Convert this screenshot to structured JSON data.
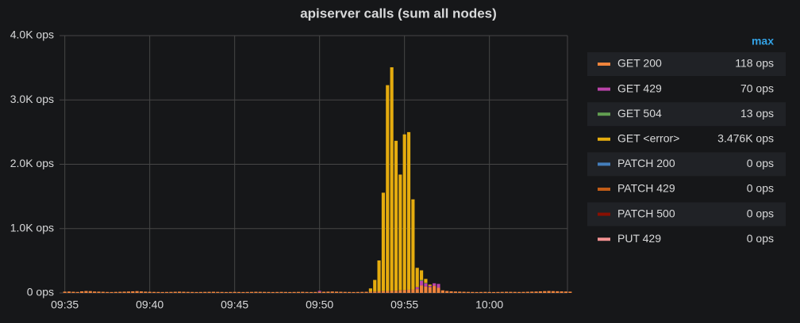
{
  "chart_data": {
    "type": "stacked_bar",
    "title": "apiserver calls (sum all nodes)",
    "categories": [
      "09:35",
      null,
      null,
      null,
      null,
      null,
      null,
      null,
      null,
      null,
      null,
      null,
      null,
      null,
      null,
      null,
      null,
      null,
      null,
      null,
      "09:40",
      null,
      null,
      null,
      null,
      null,
      null,
      null,
      null,
      null,
      null,
      null,
      null,
      null,
      null,
      null,
      null,
      null,
      null,
      null,
      "09:45",
      null,
      null,
      null,
      null,
      null,
      null,
      null,
      null,
      null,
      null,
      null,
      null,
      null,
      null,
      null,
      null,
      null,
      null,
      null,
      "09:50",
      null,
      null,
      null,
      null,
      null,
      null,
      null,
      null,
      null,
      null,
      null,
      null,
      null,
      null,
      null,
      null,
      null,
      null,
      null,
      "09:55",
      null,
      null,
      null,
      null,
      null,
      null,
      null,
      null,
      null,
      null,
      null,
      null,
      null,
      null,
      null,
      null,
      null,
      null,
      null,
      "10:00",
      null,
      null,
      null,
      null,
      null,
      null,
      null,
      null,
      null,
      null,
      null,
      null,
      null,
      null,
      null,
      null,
      null,
      null,
      null
    ],
    "ylim": [
      0,
      4000
    ],
    "yticks": [
      {
        "value": 0,
        "label": "0 ops"
      },
      {
        "value": 1000,
        "label": "1.0K ops"
      },
      {
        "value": 2000,
        "label": "2.0K ops"
      },
      {
        "value": 3000,
        "label": "3.0K ops"
      },
      {
        "value": 4000,
        "label": "4.0K ops"
      }
    ],
    "grid": true,
    "legend_header": "max",
    "series": [
      {
        "name": "GET 200",
        "color": "#ef843c",
        "max": {
          "value": 118,
          "label": "118 ops"
        },
        "values": [
          20,
          22,
          18,
          15,
          25,
          30,
          28,
          22,
          20,
          18,
          15,
          14,
          16,
          18,
          20,
          22,
          25,
          28,
          24,
          20,
          18,
          16,
          15,
          14,
          15,
          16,
          18,
          20,
          18,
          16,
          15,
          14,
          15,
          16,
          17,
          18,
          16,
          15,
          14,
          15,
          16,
          15,
          14,
          15,
          16,
          18,
          17,
          16,
          15,
          14,
          15,
          16,
          15,
          14,
          15,
          16,
          17,
          15,
          14,
          15,
          16,
          18,
          20,
          22,
          20,
          18,
          16,
          15,
          14,
          15,
          16,
          18,
          20,
          22,
          25,
          28,
          30,
          32,
          35,
          40,
          45,
          50,
          55,
          60,
          118,
          100,
          90,
          110,
          80,
          40,
          30,
          25,
          22,
          20,
          18,
          16,
          15,
          14,
          15,
          16,
          15,
          14,
          15,
          16,
          18,
          17,
          16,
          15,
          16,
          18,
          20,
          22,
          25,
          28,
          30,
          28,
          26,
          24,
          22,
          20
        ]
      },
      {
        "name": "GET 429",
        "color": "#ba43a9",
        "max": {
          "value": 70,
          "label": "70 ops"
        },
        "values": [
          0,
          0,
          0,
          0,
          0,
          0,
          0,
          0,
          0,
          0,
          0,
          0,
          0,
          0,
          0,
          0,
          0,
          0,
          0,
          0,
          0,
          0,
          0,
          0,
          0,
          0,
          0,
          0,
          0,
          0,
          0,
          0,
          0,
          0,
          0,
          0,
          0,
          0,
          0,
          0,
          0,
          0,
          0,
          0,
          0,
          0,
          0,
          0,
          0,
          0,
          0,
          0,
          0,
          0,
          0,
          0,
          0,
          0,
          0,
          0,
          15,
          0,
          0,
          0,
          0,
          0,
          0,
          0,
          0,
          0,
          0,
          0,
          0,
          0,
          0,
          0,
          0,
          0,
          0,
          0,
          0,
          0,
          0,
          30,
          70,
          50,
          20,
          40,
          60,
          0,
          0,
          0,
          0,
          0,
          0,
          0,
          0,
          0,
          0,
          0,
          0,
          0,
          0,
          0,
          0,
          0,
          0,
          0,
          0,
          0,
          0,
          0,
          0,
          0,
          0,
          0,
          0,
          0,
          0,
          0
        ]
      },
      {
        "name": "GET 504",
        "color": "#629e51",
        "max": {
          "value": 13,
          "label": "13 ops"
        },
        "values": [
          0,
          0,
          0,
          0,
          0,
          0,
          0,
          0,
          0,
          0,
          0,
          0,
          0,
          0,
          0,
          0,
          0,
          0,
          0,
          0,
          0,
          0,
          0,
          0,
          0,
          0,
          0,
          0,
          0,
          0,
          0,
          0,
          0,
          0,
          0,
          0,
          0,
          0,
          0,
          0,
          0,
          0,
          0,
          0,
          0,
          0,
          0,
          0,
          0,
          0,
          0,
          0,
          0,
          0,
          0,
          0,
          0,
          0,
          0,
          0,
          0,
          0,
          0,
          0,
          0,
          0,
          0,
          0,
          0,
          0,
          0,
          0,
          0,
          0,
          0,
          0,
          0,
          0,
          0,
          0,
          0,
          0,
          0,
          0,
          13,
          8,
          0,
          0,
          0,
          0,
          0,
          0,
          0,
          0,
          0,
          0,
          0,
          0,
          0,
          0,
          0,
          0,
          0,
          0,
          0,
          0,
          0,
          0,
          0,
          0,
          0,
          0,
          0,
          0,
          0,
          0,
          0,
          0,
          0,
          0
        ]
      },
      {
        "name": "GET <error>",
        "color": "#e5ac0e",
        "max": {
          "value": 3476,
          "label": "3.476K ops"
        },
        "values": [
          0,
          0,
          0,
          0,
          0,
          0,
          0,
          0,
          0,
          0,
          0,
          0,
          0,
          0,
          0,
          0,
          0,
          0,
          0,
          0,
          0,
          0,
          0,
          0,
          0,
          0,
          0,
          0,
          0,
          0,
          0,
          0,
          0,
          0,
          0,
          0,
          0,
          0,
          0,
          0,
          0,
          0,
          0,
          0,
          0,
          0,
          0,
          0,
          0,
          0,
          0,
          0,
          0,
          0,
          0,
          0,
          0,
          0,
          0,
          0,
          0,
          0,
          0,
          0,
          0,
          0,
          0,
          0,
          0,
          0,
          0,
          0,
          50,
          180,
          480,
          1530,
          3200,
          3476,
          2330,
          1800,
          2420,
          2450,
          1400,
          300,
          150,
          60,
          20,
          0,
          0,
          0,
          0,
          0,
          0,
          0,
          0,
          0,
          0,
          0,
          0,
          0,
          0,
          0,
          0,
          0,
          0,
          0,
          0,
          0,
          0,
          0,
          0,
          0,
          0,
          0,
          0,
          0,
          0,
          0,
          0,
          0
        ]
      },
      {
        "name": "PATCH 200",
        "color": "#447ebc",
        "max": {
          "value": 0,
          "label": "0 ops"
        },
        "values": [
          0,
          0,
          0,
          0,
          0,
          0,
          0,
          0,
          0,
          0,
          0,
          0,
          0,
          0,
          0,
          0,
          0,
          0,
          0,
          0,
          0,
          0,
          0,
          0,
          0,
          0,
          0,
          0,
          0,
          0,
          0,
          0,
          0,
          0,
          0,
          0,
          0,
          0,
          0,
          0,
          0,
          0,
          0,
          0,
          0,
          0,
          0,
          0,
          0,
          0,
          0,
          0,
          0,
          0,
          0,
          0,
          0,
          0,
          0,
          0,
          0,
          0,
          0,
          0,
          0,
          0,
          0,
          0,
          0,
          0,
          0,
          0,
          0,
          0,
          0,
          0,
          0,
          0,
          0,
          0,
          0,
          0,
          0,
          0,
          0,
          0,
          0,
          0,
          0,
          0,
          0,
          0,
          0,
          0,
          0,
          0,
          0,
          0,
          0,
          0,
          0,
          0,
          0,
          0,
          0,
          0,
          0,
          0,
          0,
          0,
          0,
          0,
          0,
          0,
          0,
          0,
          0,
          0,
          0,
          0
        ]
      },
      {
        "name": "PATCH 429",
        "color": "#c15c17",
        "max": {
          "value": 0,
          "label": "0 ops"
        },
        "values": [
          0,
          0,
          0,
          0,
          0,
          0,
          0,
          0,
          0,
          0,
          0,
          0,
          0,
          0,
          0,
          0,
          0,
          0,
          0,
          0,
          0,
          0,
          0,
          0,
          0,
          0,
          0,
          0,
          0,
          0,
          0,
          0,
          0,
          0,
          0,
          0,
          0,
          0,
          0,
          0,
          0,
          0,
          0,
          0,
          0,
          0,
          0,
          0,
          0,
          0,
          0,
          0,
          0,
          0,
          0,
          0,
          0,
          0,
          0,
          0,
          0,
          0,
          0,
          0,
          0,
          0,
          0,
          0,
          0,
          0,
          0,
          0,
          0,
          0,
          0,
          0,
          0,
          0,
          0,
          0,
          0,
          0,
          0,
          0,
          0,
          0,
          0,
          0,
          0,
          0,
          0,
          0,
          0,
          0,
          0,
          0,
          0,
          0,
          0,
          0,
          0,
          0,
          0,
          0,
          0,
          0,
          0,
          0,
          0,
          0,
          0,
          0,
          0,
          0,
          0,
          0,
          0,
          0,
          0,
          0
        ]
      },
      {
        "name": "PATCH 500",
        "color": "#890f02",
        "max": {
          "value": 0,
          "label": "0 ops"
        },
        "values": [
          0,
          0,
          0,
          0,
          0,
          0,
          0,
          0,
          0,
          0,
          0,
          0,
          0,
          0,
          0,
          0,
          0,
          0,
          0,
          0,
          0,
          0,
          0,
          0,
          0,
          0,
          0,
          0,
          0,
          0,
          0,
          0,
          0,
          0,
          0,
          0,
          0,
          0,
          0,
          0,
          0,
          0,
          0,
          0,
          0,
          0,
          0,
          0,
          0,
          0,
          0,
          0,
          0,
          0,
          0,
          0,
          0,
          0,
          0,
          0,
          0,
          0,
          0,
          0,
          0,
          0,
          0,
          0,
          0,
          0,
          0,
          0,
          0,
          0,
          0,
          0,
          0,
          0,
          0,
          0,
          0,
          0,
          0,
          0,
          0,
          0,
          0,
          0,
          0,
          0,
          0,
          0,
          0,
          0,
          0,
          0,
          0,
          0,
          0,
          0,
          0,
          0,
          0,
          0,
          0,
          0,
          0,
          0,
          0,
          0,
          0,
          0,
          0,
          0,
          0,
          0,
          0,
          0,
          0,
          0
        ]
      },
      {
        "name": "PUT 429",
        "color": "#f29191",
        "max": {
          "value": 0,
          "label": "0 ops"
        },
        "values": [
          0,
          0,
          0,
          0,
          0,
          0,
          0,
          0,
          0,
          0,
          0,
          0,
          0,
          0,
          0,
          0,
          0,
          0,
          0,
          0,
          0,
          0,
          0,
          0,
          0,
          0,
          0,
          0,
          0,
          0,
          0,
          0,
          0,
          0,
          0,
          0,
          0,
          0,
          0,
          0,
          0,
          0,
          0,
          0,
          0,
          0,
          0,
          0,
          0,
          0,
          0,
          0,
          0,
          0,
          0,
          0,
          0,
          0,
          0,
          0,
          0,
          0,
          0,
          0,
          0,
          0,
          0,
          0,
          0,
          0,
          0,
          0,
          0,
          0,
          0,
          0,
          0,
          0,
          0,
          0,
          0,
          0,
          0,
          0,
          0,
          0,
          0,
          0,
          0,
          0,
          0,
          0,
          0,
          0,
          0,
          0,
          0,
          0,
          0,
          0,
          0,
          0,
          0,
          0,
          0,
          0,
          0,
          0,
          0,
          0,
          0,
          0,
          0,
          0,
          0,
          0,
          0,
          0,
          0,
          0
        ]
      }
    ]
  }
}
